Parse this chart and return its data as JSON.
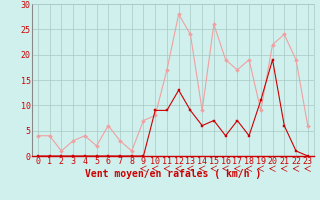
{
  "hours": [
    0,
    1,
    2,
    3,
    4,
    5,
    6,
    7,
    8,
    9,
    10,
    11,
    12,
    13,
    14,
    15,
    16,
    17,
    18,
    19,
    20,
    21,
    22,
    23
  ],
  "vent_moyen": [
    0,
    0,
    0,
    0,
    0,
    0,
    0,
    0,
    0,
    0,
    9,
    9,
    13,
    9,
    6,
    7,
    4,
    7,
    4,
    11,
    19,
    6,
    1,
    0
  ],
  "rafales": [
    4,
    4,
    1,
    3,
    4,
    2,
    6,
    3,
    1,
    7,
    8,
    17,
    28,
    24,
    9,
    26,
    19,
    17,
    19,
    9,
    22,
    24,
    19,
    6
  ],
  "color_moyen": "#cc0000",
  "color_rafales": "#f0a0a0",
  "bg_color": "#d0f0ee",
  "grid_color": "#a8c8c4",
  "axis_color": "#cc0000",
  "xlabel": "Vent moyen/en rafales ( km/h )",
  "ylim": [
    0,
    30
  ],
  "yticks": [
    0,
    5,
    10,
    15,
    20,
    25,
    30
  ],
  "label_fontsize": 7,
  "tick_fontsize": 6
}
